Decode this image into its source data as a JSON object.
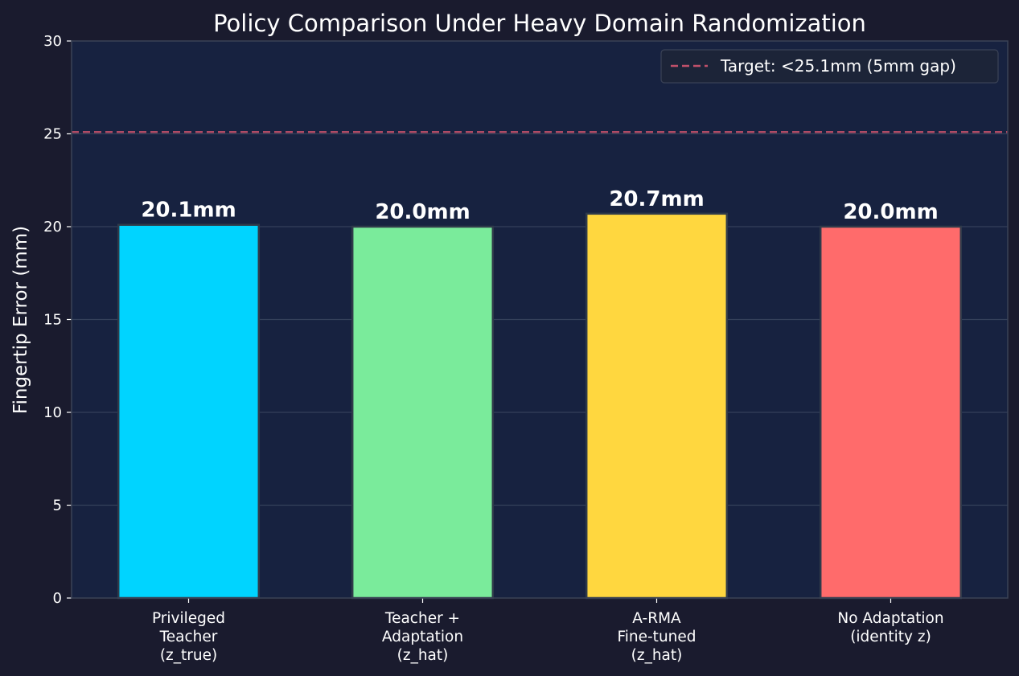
{
  "chart_data": {
    "type": "bar",
    "title": "Policy Comparison Under Heavy Domain Randomization",
    "xlabel": "",
    "ylabel": "Fingertip Error (mm)",
    "ylim": [
      0,
      30
    ],
    "yticks": [
      0,
      5,
      10,
      15,
      20,
      25,
      30
    ],
    "grid": true,
    "legend_position": "top-right",
    "categories": [
      [
        "Privileged",
        "Teacher",
        "(z_true)"
      ],
      [
        "Teacher +",
        "Adaptation",
        "(z_hat)"
      ],
      [
        "A-RMA",
        "Fine-tuned",
        "(z_hat)"
      ],
      [
        "No Adaptation",
        "(identity z)"
      ]
    ],
    "values": [
      20.1,
      20.0,
      20.7,
      20.0
    ],
    "data_labels": [
      "20.1mm",
      "20.0mm",
      "20.7mm",
      "20.0mm"
    ],
    "colors": [
      "#00d4ff",
      "#7aeb9b",
      "#ffd73f",
      "#ff6b6b"
    ],
    "reference_line": {
      "value": 25.1,
      "label": "Target: <25.1mm (5mm gap)",
      "color": "#c0506a"
    }
  }
}
